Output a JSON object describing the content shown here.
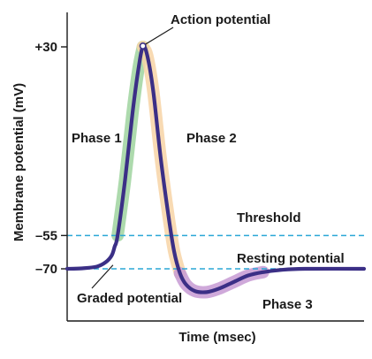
{
  "chart_data": {
    "type": "line",
    "xlabel": "Time (msec)",
    "ylabel": "Membrane potential (mV)",
    "yticks": [
      {
        "label": "+30",
        "value": 30
      },
      {
        "label": "–55",
        "value": -55
      },
      {
        "label": "–70",
        "value": -70
      }
    ],
    "ylim": [
      -90,
      45
    ],
    "xlim": [
      0,
      100
    ],
    "grid": false,
    "series": [
      {
        "values": [
          {
            "x": 0,
            "y": -70
          },
          {
            "x": 5,
            "y": -69.8
          },
          {
            "x": 10,
            "y": -69
          },
          {
            "x": 13,
            "y": -67
          },
          {
            "x": 15,
            "y": -64
          },
          {
            "x": 16,
            "y": -60
          },
          {
            "x": 17,
            "y": -55
          },
          {
            "x": 19.5,
            "y": -30
          },
          {
            "x": 22,
            "y": 0
          },
          {
            "x": 24,
            "y": 20
          },
          {
            "x": 25.5,
            "y": 30
          },
          {
            "x": 27,
            "y": 26
          },
          {
            "x": 29,
            "y": 10
          },
          {
            "x": 31.5,
            "y": -20
          },
          {
            "x": 34,
            "y": -45
          },
          {
            "x": 36,
            "y": -62
          },
          {
            "x": 38,
            "y": -72
          },
          {
            "x": 40,
            "y": -77
          },
          {
            "x": 43,
            "y": -80
          },
          {
            "x": 47,
            "y": -80.5
          },
          {
            "x": 51,
            "y": -79
          },
          {
            "x": 56,
            "y": -76
          },
          {
            "x": 61,
            "y": -73
          },
          {
            "x": 66,
            "y": -71.5
          },
          {
            "x": 72,
            "y": -70.5
          },
          {
            "x": 80,
            "y": -70
          },
          {
            "x": 100,
            "y": -70
          }
        ]
      }
    ],
    "reference_lines": [
      {
        "y": -55,
        "label": "Threshold"
      },
      {
        "y": -70,
        "label": "Resting potential"
      }
    ],
    "phases": [
      {
        "label": "Phase 1",
        "x_range": [
          17,
          25.5
        ],
        "color": "#9fd49f"
      },
      {
        "label": "Phase 2",
        "x_range": [
          25.5,
          38
        ],
        "color": "#f7d3a6"
      },
      {
        "label": "Phase 3",
        "x_range": [
          38,
          70
        ],
        "color": "#c79ad3"
      }
    ],
    "annotations": [
      {
        "text": "Action potential",
        "target": {
          "x": 25.5,
          "y": 30
        }
      },
      {
        "text": "Graded potential",
        "target": {
          "x": 8,
          "y": -70
        }
      }
    ],
    "colors": {
      "curve": "#3b2f86",
      "axis": "#1a1a1a",
      "dashed_line": "#2aa7d6"
    }
  }
}
